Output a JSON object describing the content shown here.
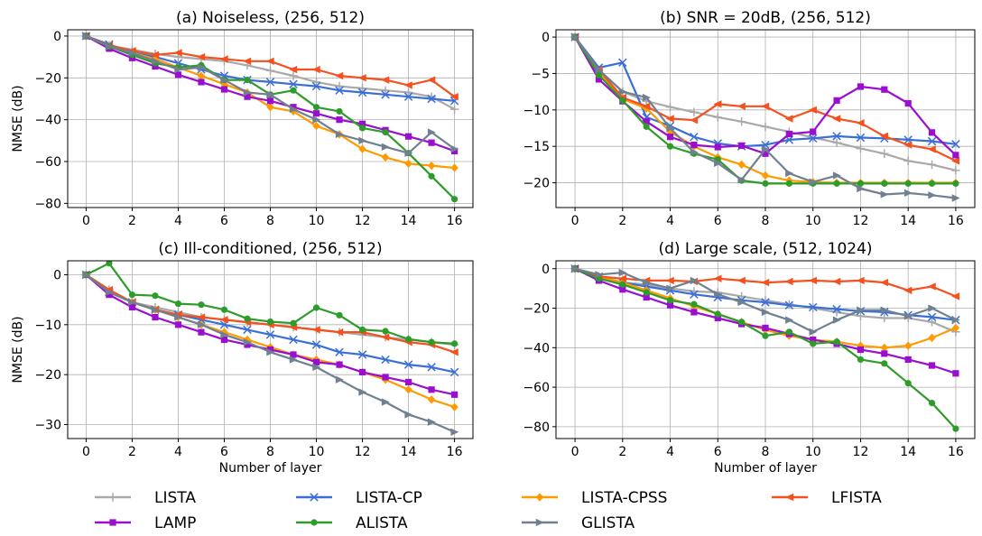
{
  "chart_data": [
    {
      "type": "line",
      "title": "(a) Noiseless, (256, 512)",
      "xlabel": "",
      "ylabel": "NMSE (dB)",
      "xlim": [
        -0.8,
        16.8
      ],
      "ylim": [
        -82,
        3
      ],
      "xticks": [
        0,
        2,
        4,
        6,
        8,
        10,
        12,
        14,
        16
      ],
      "yticks": [
        0,
        -20,
        -40,
        -60,
        -80
      ],
      "ytick_labels": [
        "0",
        "−20",
        "−40",
        "−60",
        "−80"
      ],
      "grid": true,
      "x": [
        0,
        1,
        2,
        3,
        4,
        5,
        6,
        7,
        8,
        9,
        10,
        11,
        12,
        13,
        14,
        15,
        16
      ],
      "series": [
        {
          "name": "LISTA",
          "values": [
            0,
            -4.5,
            -6.5,
            -8.5,
            -10,
            -11,
            -12,
            -14,
            -16.5,
            -19,
            -22,
            -24,
            -25,
            -26,
            -27,
            -29,
            -35
          ]
        },
        {
          "name": "LISTA-CP",
          "values": [
            0,
            -4,
            -8,
            -10,
            -13,
            -16,
            -19,
            -21,
            -22,
            -23,
            -24,
            -26,
            -27,
            -28,
            -29,
            -30,
            -31
          ]
        },
        {
          "name": "LISTA-CPSS",
          "values": [
            0,
            -5,
            -8,
            -11,
            -15,
            -19,
            -23,
            -27,
            -34,
            -36,
            -43,
            -47,
            -54,
            -58,
            -61,
            -62,
            -63
          ]
        },
        {
          "name": "LFISTA",
          "values": [
            0,
            -4.5,
            -7,
            -9,
            -8,
            -10,
            -11,
            -12,
            -12,
            -16,
            -16,
            -19,
            -20,
            -21,
            -23.5,
            -21,
            -29
          ]
        },
        {
          "name": "LAMP",
          "values": [
            0,
            -6,
            -10.5,
            -14.5,
            -18.5,
            -22,
            -25.5,
            -29,
            -31,
            -34,
            -37,
            -40,
            -42,
            -45,
            -48,
            -51,
            -55
          ]
        },
        {
          "name": "ALISTA",
          "values": [
            0,
            -5,
            -9,
            -13,
            -15,
            -14,
            -21,
            -21,
            -28,
            -26,
            -34,
            -36,
            -44,
            -46,
            -56,
            -67,
            -78
          ]
        },
        {
          "name": "GLISTA",
          "values": [
            0,
            -5,
            -8,
            -12,
            -16,
            -15,
            -21,
            -27,
            -28,
            -35,
            -40,
            -47,
            -50,
            -53,
            -56,
            -46,
            -54
          ]
        }
      ]
    },
    {
      "type": "line",
      "title": "(b) SNR = 20dB, (256, 512)",
      "xlabel": "",
      "ylabel": "",
      "xlim": [
        -0.8,
        16.8
      ],
      "ylim": [
        -23.4,
        1
      ],
      "xticks": [
        0,
        2,
        4,
        6,
        8,
        10,
        12,
        14,
        16
      ],
      "yticks": [
        0,
        -5,
        -10,
        -15,
        -20
      ],
      "ytick_labels": [
        "0",
        "−5",
        "−10",
        "−15",
        "−20"
      ],
      "grid": true,
      "x": [
        0,
        1,
        2,
        3,
        4,
        5,
        6,
        7,
        8,
        9,
        10,
        11,
        12,
        13,
        14,
        15,
        16
      ],
      "series": [
        {
          "name": "LISTA",
          "values": [
            0,
            -4.5,
            -7.5,
            -8.8,
            -9.6,
            -10.3,
            -11,
            -11.6,
            -12.3,
            -13,
            -13.8,
            -14.5,
            -15.3,
            -16,
            -17,
            -17.5,
            -18.3
          ]
        },
        {
          "name": "LISTA-CP",
          "values": [
            0,
            -4.2,
            -3.5,
            -11,
            -12.2,
            -13.7,
            -14.6,
            -15,
            -14.8,
            -14.1,
            -13.9,
            -13.6,
            -13.8,
            -13.9,
            -14.1,
            -14.3,
            -14.7
          ]
        },
        {
          "name": "LISTA-CPSS",
          "values": [
            0,
            -5,
            -8.5,
            -9.8,
            -13,
            -15,
            -16.5,
            -17.5,
            -19,
            -19.7,
            -19.9,
            -20,
            -20,
            -20,
            -20,
            -20,
            -20
          ]
        },
        {
          "name": "LFISTA",
          "values": [
            0,
            -4.5,
            -8.3,
            -9.5,
            -11.2,
            -11.4,
            -9.2,
            -9.5,
            -9.5,
            -11.2,
            -10,
            -11.2,
            -11.8,
            -13.6,
            -14.8,
            -15.4,
            -17
          ]
        },
        {
          "name": "LAMP",
          "values": [
            0,
            -5.8,
            -8.8,
            -11.6,
            -13.7,
            -14.8,
            -15.1,
            -14.9,
            -16,
            -13.3,
            -13,
            -8.7,
            -6.8,
            -7.2,
            -9.1,
            -13.1,
            -16.2
          ]
        },
        {
          "name": "ALISTA",
          "values": [
            0,
            -5.2,
            -8.7,
            -12.3,
            -15,
            -16,
            -16.8,
            -19.7,
            -20.1,
            -20.1,
            -20.1,
            -20.1,
            -20.1,
            -20.1,
            -20.1,
            -20.1,
            -20.1
          ]
        },
        {
          "name": "GLISTA",
          "values": [
            0,
            -4.5,
            -7.5,
            -8.3,
            -12.5,
            -15.8,
            -17.3,
            -19.6,
            -15.4,
            -18.7,
            -19.9,
            -19,
            -20.8,
            -21.6,
            -21.4,
            -21.7,
            -22.1
          ]
        }
      ]
    },
    {
      "type": "line",
      "title": "(c) Ill-conditioned, (256, 512)",
      "xlabel": "Number of layer",
      "ylabel": "NMSE (dB)",
      "xlim": [
        -0.8,
        16.8
      ],
      "ylim": [
        -32.8,
        2.8
      ],
      "xticks": [
        0,
        2,
        4,
        6,
        8,
        10,
        12,
        14,
        16
      ],
      "yticks": [
        0,
        -10,
        -20,
        -30
      ],
      "ytick_labels": [
        "0",
        "−10",
        "−20",
        "−30"
      ],
      "grid": true,
      "x": [
        0,
        1,
        2,
        3,
        4,
        5,
        6,
        7,
        8,
        9,
        10,
        11,
        12,
        13,
        14,
        15,
        16
      ],
      "series": [
        {
          "name": "LISTA",
          "values": [
            0,
            -3,
            -5.5,
            -6.5,
            -7.5,
            -8.5,
            -9,
            -9.5,
            -10,
            -10.5,
            -11,
            -11.5,
            -12,
            -12.5,
            -13,
            -13.5,
            -14
          ]
        },
        {
          "name": "LISTA-CP",
          "values": [
            0,
            -3.5,
            -5.5,
            -7,
            -8,
            -9,
            -10,
            -11,
            -12,
            -13,
            -14,
            -15.5,
            -16,
            -17,
            -18,
            -18.5,
            -19.5
          ]
        },
        {
          "name": "LISTA-CPSS",
          "values": [
            0,
            -3.5,
            -5.5,
            -7,
            -8.5,
            -10,
            -11.5,
            -13,
            -14.5,
            -16,
            -17,
            -18,
            -19.5,
            -21,
            -23,
            -25,
            -26.5
          ]
        },
        {
          "name": "LFISTA",
          "values": [
            0,
            -3,
            -5.5,
            -7,
            -8,
            -8.5,
            -9,
            -9.5,
            -10,
            -10.5,
            -11,
            -11.5,
            -11.5,
            -12.5,
            -13.5,
            -14,
            -15.5
          ]
        },
        {
          "name": "LAMP",
          "values": [
            0,
            -4,
            -6.5,
            -8.5,
            -10,
            -11.5,
            -13,
            -14,
            -15,
            -16,
            -17.5,
            -18,
            -19.5,
            -20.5,
            -21.5,
            -23,
            -24
          ]
        },
        {
          "name": "ALISTA",
          "values": [
            0,
            2.3,
            -4,
            -4.2,
            -5.8,
            -6,
            -7,
            -8.8,
            -9.4,
            -9.7,
            -6.6,
            -8.1,
            -11,
            -11.3,
            -12.9,
            -13.5,
            -13.8
          ]
        },
        {
          "name": "GLISTA",
          "values": [
            0,
            -3.5,
            -5.5,
            -7,
            -8.5,
            -10,
            -12,
            -13.5,
            -15.5,
            -17,
            -18.5,
            -21,
            -23.5,
            -25.5,
            -28,
            -29.5,
            -31.5
          ]
        }
      ]
    },
    {
      "type": "line",
      "title": "(d) Large scale, (512, 1024)",
      "xlabel": "Number of layer",
      "ylabel": "",
      "xlim": [
        -0.8,
        16.8
      ],
      "ylim": [
        -86,
        4
      ],
      "xticks": [
        0,
        2,
        4,
        6,
        8,
        10,
        12,
        14,
        16
      ],
      "yticks": [
        0,
        -20,
        -40,
        -60,
        -80
      ],
      "ytick_labels": [
        "0",
        "−20",
        "−40",
        "−60",
        "−80"
      ],
      "grid": true,
      "x": [
        0,
        1,
        2,
        3,
        4,
        5,
        6,
        7,
        8,
        9,
        10,
        11,
        12,
        13,
        14,
        15,
        16
      ],
      "series": [
        {
          "name": "LISTA",
          "values": [
            0,
            -4,
            -7,
            -8,
            -10,
            -11.5,
            -12,
            -14,
            -16,
            -18,
            -20,
            -22,
            -24,
            -25,
            -25,
            -27,
            -32
          ]
        },
        {
          "name": "LISTA-CP",
          "values": [
            0,
            -4,
            -7,
            -9,
            -11,
            -13,
            -14.5,
            -16,
            -17,
            -18.5,
            -19.5,
            -20.5,
            -21.5,
            -22,
            -23.5,
            -24.5,
            -26
          ]
        },
        {
          "name": "LISTA-CPSS",
          "values": [
            0,
            -4,
            -7,
            -11,
            -15,
            -19,
            -23,
            -27,
            -31,
            -34,
            -36,
            -37,
            -39,
            -40,
            -39,
            -35,
            -30
          ]
        },
        {
          "name": "LFISTA",
          "values": [
            0,
            -4,
            -5,
            -6,
            -6,
            -6.5,
            -5,
            -6,
            -7,
            -6.5,
            -6,
            -6.5,
            -6,
            -7,
            -11,
            -9,
            -14
          ]
        },
        {
          "name": "LAMP",
          "values": [
            0,
            -6,
            -10.5,
            -14.5,
            -18.5,
            -22,
            -25,
            -28,
            -30,
            -33,
            -36,
            -38,
            -41,
            -43,
            -46,
            -49,
            -53
          ]
        },
        {
          "name": "ALISTA",
          "values": [
            0,
            -5,
            -8,
            -12,
            -16,
            -18,
            -23,
            -27,
            -34,
            -32,
            -38,
            -37,
            -46,
            -48,
            -58,
            -68,
            -81
          ]
        },
        {
          "name": "GLISTA",
          "values": [
            0,
            -3,
            -2,
            -7,
            -10,
            -6,
            -13,
            -17,
            -22,
            -26,
            -32,
            -26,
            -21,
            -21,
            -24,
            -20,
            -26
          ]
        }
      ]
    }
  ],
  "legend": {
    "placement": "bottom",
    "items": [
      {
        "label": "LISTA",
        "color": "#a9a9a9",
        "marker": "plus"
      },
      {
        "label": "LISTA-CP",
        "color": "#3a6fd8",
        "marker": "x"
      },
      {
        "label": "LISTA-CPSS",
        "color": "#ff9a00",
        "marker": "diamond"
      },
      {
        "label": "LFISTA",
        "color": "#f4511e",
        "marker": "triangle-left"
      },
      {
        "label": "LAMP",
        "color": "#9a0ecf",
        "marker": "square"
      },
      {
        "label": "ALISTA",
        "color": "#2e9c2a",
        "marker": "circle"
      },
      {
        "label": "GLISTA",
        "color": "#708090",
        "marker": "triangle-right"
      }
    ]
  }
}
